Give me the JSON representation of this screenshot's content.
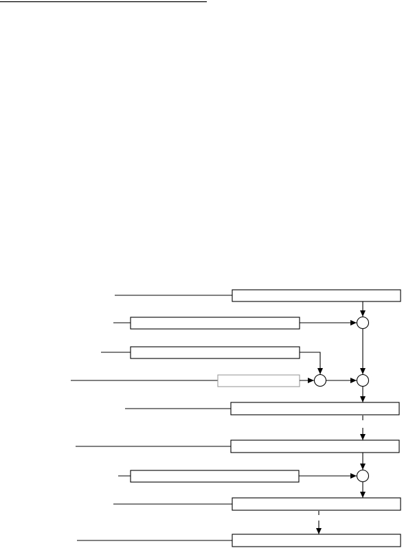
{
  "diagram": {
    "type": "flow-block-diagram",
    "stroke_color": "#000000",
    "faint_box_color": "#9a9a9a",
    "background_color": "#ffffff",
    "blocks": [
      {
        "id": "b1",
        "label": ""
      },
      {
        "id": "b2",
        "label": ""
      },
      {
        "id": "b3",
        "label": ""
      },
      {
        "id": "b4",
        "label": ""
      },
      {
        "id": "b5",
        "label": ""
      },
      {
        "id": "b6",
        "label": ""
      },
      {
        "id": "b7",
        "label": ""
      },
      {
        "id": "b8",
        "label": ""
      },
      {
        "id": "b9",
        "label": ""
      }
    ],
    "junctions": [
      {
        "id": "j1"
      },
      {
        "id": "j2"
      },
      {
        "id": "j3"
      },
      {
        "id": "j4"
      }
    ]
  }
}
